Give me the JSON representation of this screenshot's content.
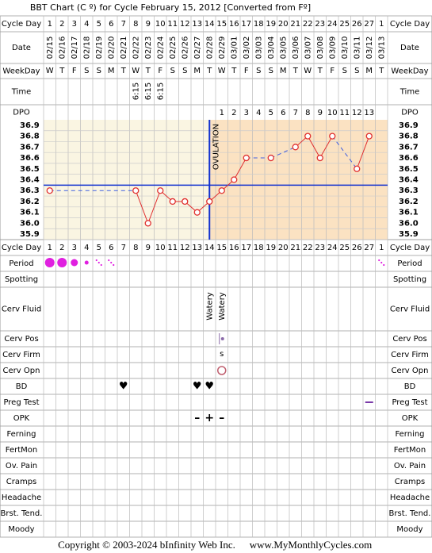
{
  "title": "BBT Chart (C º) for Cycle February 15, 2012  [Converted from Fº]",
  "row_labels": [
    "Cycle Day",
    "Date",
    "WeekDay",
    "Time",
    "DPO",
    "Cycle Day",
    "Period",
    "Spotting",
    "Cerv Fluid",
    "Cerv Pos",
    "Cerv Firm",
    "Cerv Opn",
    "BD",
    "Preg Test",
    "OPK",
    "Ferning",
    "FertMon",
    "Ov. Pain",
    "Cramps",
    "Headache",
    "Brst. Tend.",
    "Moody"
  ],
  "cycle_days": [
    1,
    2,
    3,
    4,
    5,
    6,
    7,
    8,
    9,
    10,
    11,
    12,
    13,
    14,
    15,
    16,
    17,
    18,
    19,
    20,
    21,
    22,
    23,
    24,
    25,
    26,
    27,
    1
  ],
  "dates": [
    "02/15",
    "02/16",
    "02/17",
    "02/18",
    "02/19",
    "02/20",
    "02/21",
    "02/22",
    "02/23",
    "02/24",
    "02/25",
    "02/26",
    "02/27",
    "02/28",
    "02/29",
    "03/01",
    "03/02",
    "03/03",
    "03/04",
    "03/05",
    "03/06",
    "03/07",
    "03/08",
    "03/09",
    "03/10",
    "03/11",
    "03/12",
    "03/13"
  ],
  "weekdays": [
    "W",
    "T",
    "F",
    "S",
    "S",
    "M",
    "T",
    "W",
    "T",
    "F",
    "S",
    "S",
    "M",
    "T",
    "W",
    "T",
    "F",
    "S",
    "S",
    "M",
    "T",
    "W",
    "T",
    "F",
    "S",
    "S",
    "M",
    "T"
  ],
  "times": [
    null,
    null,
    null,
    null,
    null,
    null,
    null,
    "6:15",
    "6:15",
    "6:15",
    null,
    null,
    null,
    null,
    null,
    null,
    null,
    null,
    null,
    null,
    null,
    null,
    null,
    null,
    null,
    null,
    null,
    null
  ],
  "dpo": [
    null,
    null,
    null,
    null,
    null,
    null,
    null,
    null,
    null,
    null,
    null,
    null,
    null,
    null,
    1,
    2,
    3,
    4,
    5,
    6,
    7,
    8,
    9,
    10,
    11,
    12,
    13,
    null
  ],
  "cerv_fluid": [
    null,
    null,
    null,
    null,
    null,
    null,
    null,
    null,
    null,
    null,
    null,
    null,
    null,
    "Watery",
    "Watery",
    null,
    null,
    null,
    null,
    null,
    null,
    null,
    null,
    null,
    null,
    null,
    null,
    null
  ],
  "cerv_firm": [
    null,
    null,
    null,
    null,
    null,
    null,
    null,
    null,
    null,
    null,
    null,
    null,
    null,
    null,
    "s",
    null,
    null,
    null,
    null,
    null,
    null,
    null,
    null,
    null,
    null,
    null,
    null,
    null
  ],
  "bd": [
    null,
    null,
    null,
    null,
    null,
    null,
    "♥",
    null,
    null,
    null,
    null,
    null,
    "♥",
    "♥",
    null,
    null,
    null,
    null,
    null,
    null,
    null,
    null,
    null,
    null,
    null,
    null,
    null,
    null
  ],
  "opk": [
    null,
    null,
    null,
    null,
    null,
    null,
    null,
    null,
    null,
    null,
    null,
    null,
    "–",
    "+",
    "–",
    null,
    null,
    null,
    null,
    null,
    null,
    null,
    null,
    null,
    null,
    null,
    null,
    null
  ],
  "chart_data": {
    "type": "line",
    "values": [
      36.3,
      null,
      null,
      null,
      null,
      null,
      null,
      36.3,
      36.0,
      36.3,
      36.2,
      36.2,
      36.1,
      36.2,
      36.3,
      36.4,
      36.6,
      null,
      36.6,
      null,
      36.7,
      36.8,
      36.6,
      36.8,
      null,
      36.5,
      36.8,
      null
    ],
    "color": "#e03030",
    "ylim": [
      35.85,
      36.95
    ],
    "yticks": [
      36.9,
      36.8,
      36.7,
      36.6,
      36.5,
      36.4,
      36.3,
      36.2,
      36.1,
      {
        "value": 36.0,
        "label": "36.0"
      },
      35.9
    ],
    "coverline": 36.35,
    "ovulation_cycle_day": 14,
    "ovulation_label": "OVULATION"
  },
  "footer": {
    "copyright": "Copyright © 2003-2024 bInfinity Web Inc.",
    "site": "www.MyMonthlyCycles.com"
  }
}
